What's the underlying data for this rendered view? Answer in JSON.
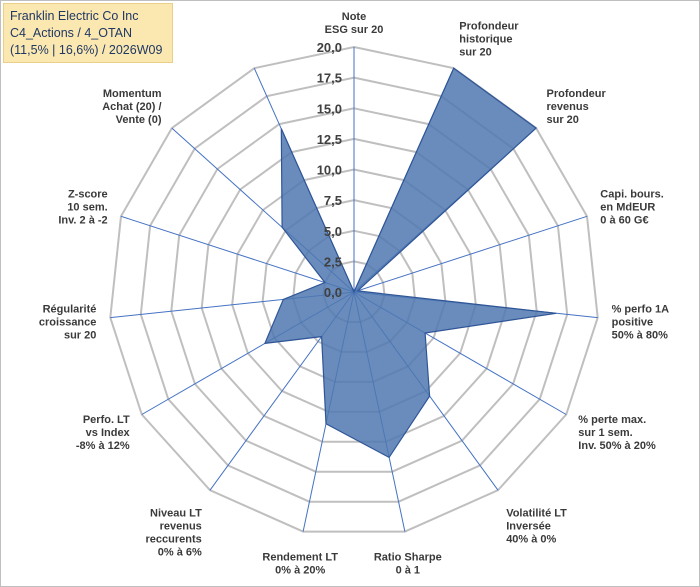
{
  "title_box": {
    "line1": "Franklin Electric Co Inc",
    "line2": "C4_Actions / 4_OTAN",
    "line3": "(11,5% | 16,6%) / 2026W09"
  },
  "colors": {
    "fill": "#4f78b0",
    "stroke": "#2f5597",
    "grid": "#bfbfbf",
    "spoke": "#4472c4",
    "title_bg": "#fbe7b0"
  },
  "chart_data": {
    "type": "radar",
    "rmin": 0,
    "rmax": 20,
    "ticks": [
      "0,0",
      "2,5",
      "5,0",
      "7,5",
      "10,0",
      "12,5",
      "15,0",
      "17,5",
      "20,0"
    ],
    "axes": [
      {
        "label": [
          "Note",
          "ESG sur 20"
        ],
        "value": 0
      },
      {
        "label": [
          "Profondeur",
          "historique",
          "sur 20"
        ],
        "value": 20
      },
      {
        "label": [
          "Profondeur",
          "revenus",
          "sur 20"
        ],
        "value": 20
      },
      {
        "label": [
          "Capi. bours.",
          "en MdEUR",
          "0 à 60 G€"
        ],
        "value": 0.3
      },
      {
        "label": [
          "% perfo 1A",
          "positive",
          "50% à 80%"
        ],
        "value": 16.6
      },
      {
        "label": [
          "% perte max.",
          "sur 1 sem.",
          "Inv. 50% à 20%"
        ],
        "value": 6.7
      },
      {
        "label": [
          "Volatilité LT",
          "Inversée",
          "40% à 0%"
        ],
        "value": 10.5
      },
      {
        "label": [
          "Ratio Sharpe",
          "0 à 1"
        ],
        "value": 13.8
      },
      {
        "label": [
          "Rendement LT",
          "0% à 20%"
        ],
        "value": 11.0
      },
      {
        "label": [
          "Niveau LT",
          "revenus",
          "reccurents",
          "0% à 6%"
        ],
        "value": 4.5
      },
      {
        "label": [
          "Perfo. LT",
          "vs Index",
          "-8% à 12%"
        ],
        "value": 8.4
      },
      {
        "label": [
          "Régularité",
          "croissance",
          "sur 20"
        ],
        "value": 5.8
      },
      {
        "label": [
          "Z-score",
          "10 sem.",
          "Inv. 2 à -2"
        ],
        "value": 2.5
      },
      {
        "label": [
          "Momentum",
          "Achat (20) /",
          "Vente (0)"
        ],
        "value": 7.9
      },
      {
        "label": [],
        "value": 14.6
      }
    ]
  }
}
